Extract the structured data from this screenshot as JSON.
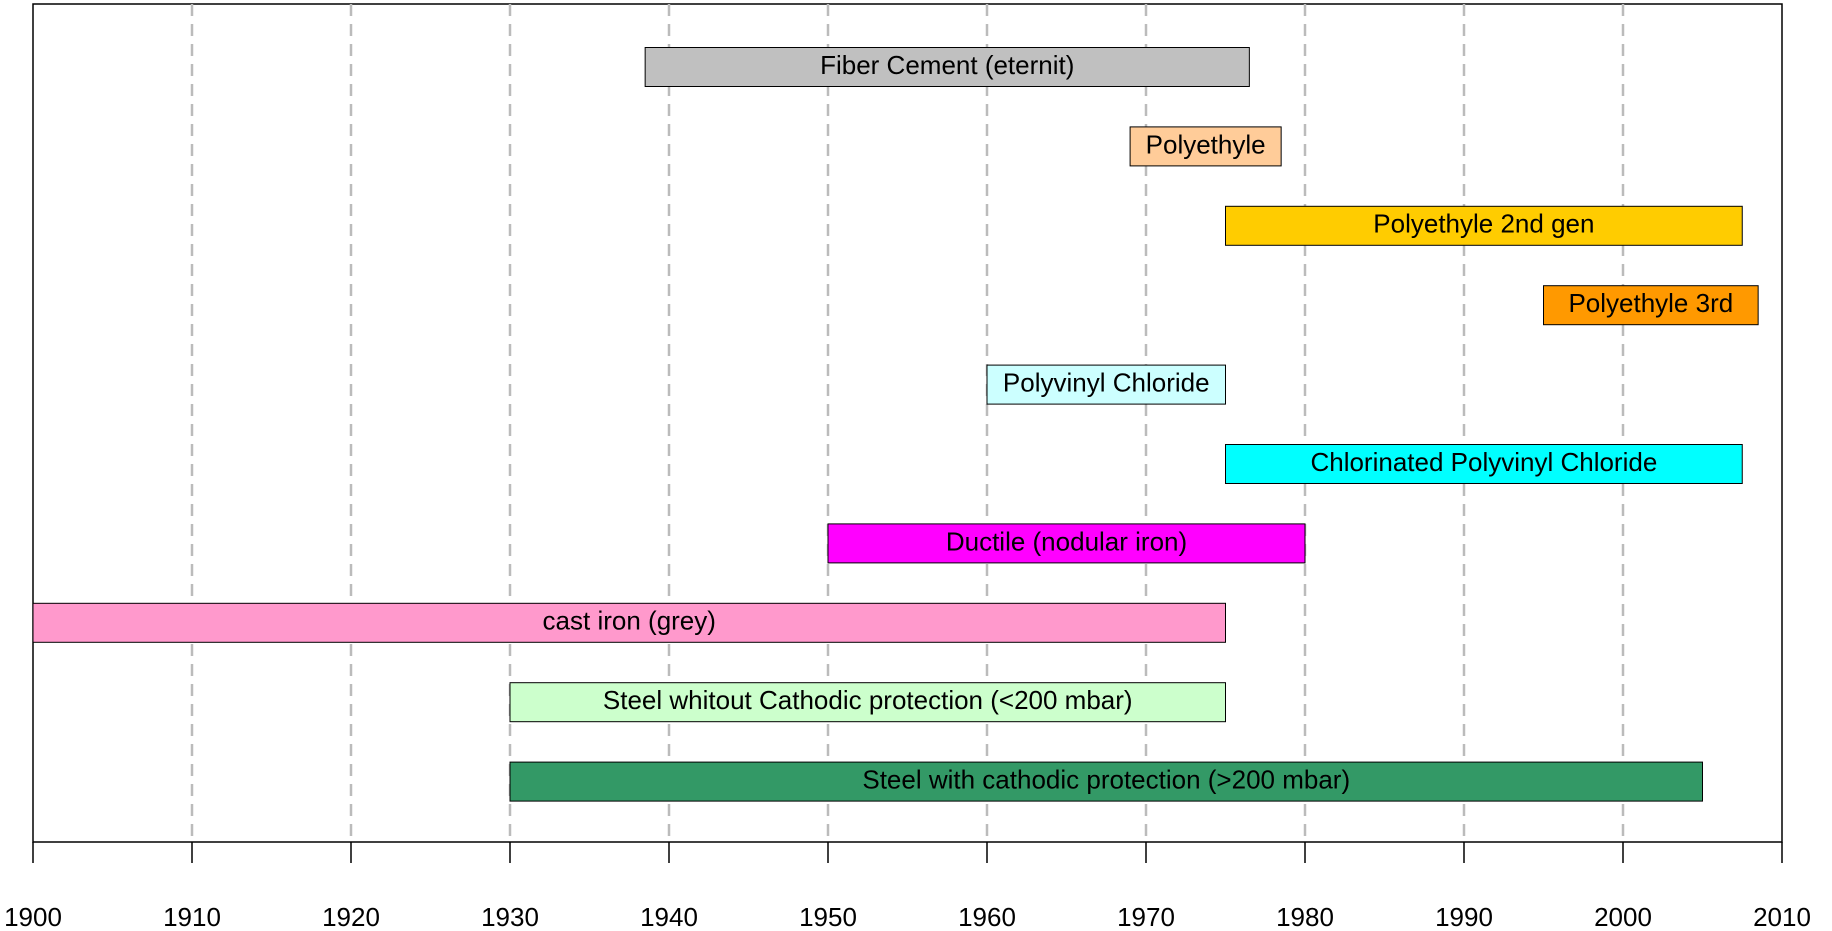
{
  "chart_data": {
    "type": "timeline",
    "bars": [
      {
        "label": "Fiber Cement (eternit)",
        "start": 1938.5,
        "end": 1976.5,
        "color": "#c0c0c0"
      },
      {
        "label": "Polyethyle",
        "start": 1969,
        "end": 1978.5,
        "color": "#ffcc99"
      },
      {
        "label": "Polyethyle 2nd gen",
        "start": 1975,
        "end": 2007.5,
        "color": "#ffcc00"
      },
      {
        "label": "Polyethyle 3rd",
        "start": 1995,
        "end": 2008.5,
        "color": "#ff9900"
      },
      {
        "label": "Polyvinyl Chloride",
        "start": 1960,
        "end": 1975,
        "color": "#ccffff"
      },
      {
        "label": "Chlorinated Polyvinyl Chloride",
        "start": 1975,
        "end": 2007.5,
        "color": "#00ffff"
      },
      {
        "label": "Ductile (nodular iron)",
        "start": 1950,
        "end": 1980,
        "color": "#ff00ff"
      },
      {
        "label": "cast iron (grey)",
        "start": 1900,
        "end": 1975,
        "color": "#ff99cc"
      },
      {
        "label": "Steel whitout Cathodic protection (<200 mbar)",
        "start": 1930,
        "end": 1975,
        "color": "#ccffcc"
      },
      {
        "label": "Steel with cathodic protection (>200 mbar)",
        "start": 1930,
        "end": 2005,
        "color": "#339966"
      }
    ],
    "xlim": [
      1900,
      2010
    ],
    "xticks": [
      1900,
      1910,
      1920,
      1930,
      1940,
      1950,
      1960,
      1970,
      1980,
      1990,
      2000,
      2010
    ],
    "grid": true
  }
}
